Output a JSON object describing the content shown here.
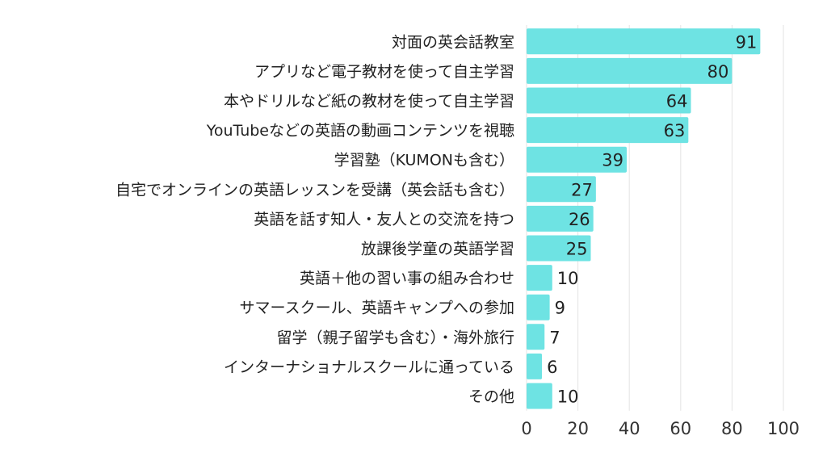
{
  "chart_data": {
    "type": "bar",
    "orientation": "horizontal",
    "categories": [
      "対面の英会話教室",
      "アプリなど電子教材を使って自主学習",
      "本やドリルなど紙の教材を使って自主学習",
      "YouTubeなどの英語の動画コンテンツを視聴",
      "学習塾（KUMONも含む）",
      "自宅でオンラインの英語レッスンを受講（英会話も含む）",
      "英語を話す知人・友人との交流を持つ",
      "放課後学童の英語学習",
      "英語＋他の習い事の組み合わせ",
      "サマースクール、英語キャンプへの参加",
      "留学（親子留学も含む）・海外旅行",
      "インターナショナルスクールに通っている",
      "その他"
    ],
    "values": [
      91,
      80,
      64,
      63,
      39,
      27,
      26,
      25,
      10,
      9,
      7,
      6,
      10
    ],
    "xlim": [
      0,
      100
    ],
    "xticks": [
      "0",
      "20",
      "40",
      "60",
      "80",
      "100"
    ],
    "grid": true,
    "bar_color": "#6ee3e3",
    "grid_color": "#e3e3e3",
    "title": "",
    "xlabel": "",
    "ylabel": ""
  }
}
